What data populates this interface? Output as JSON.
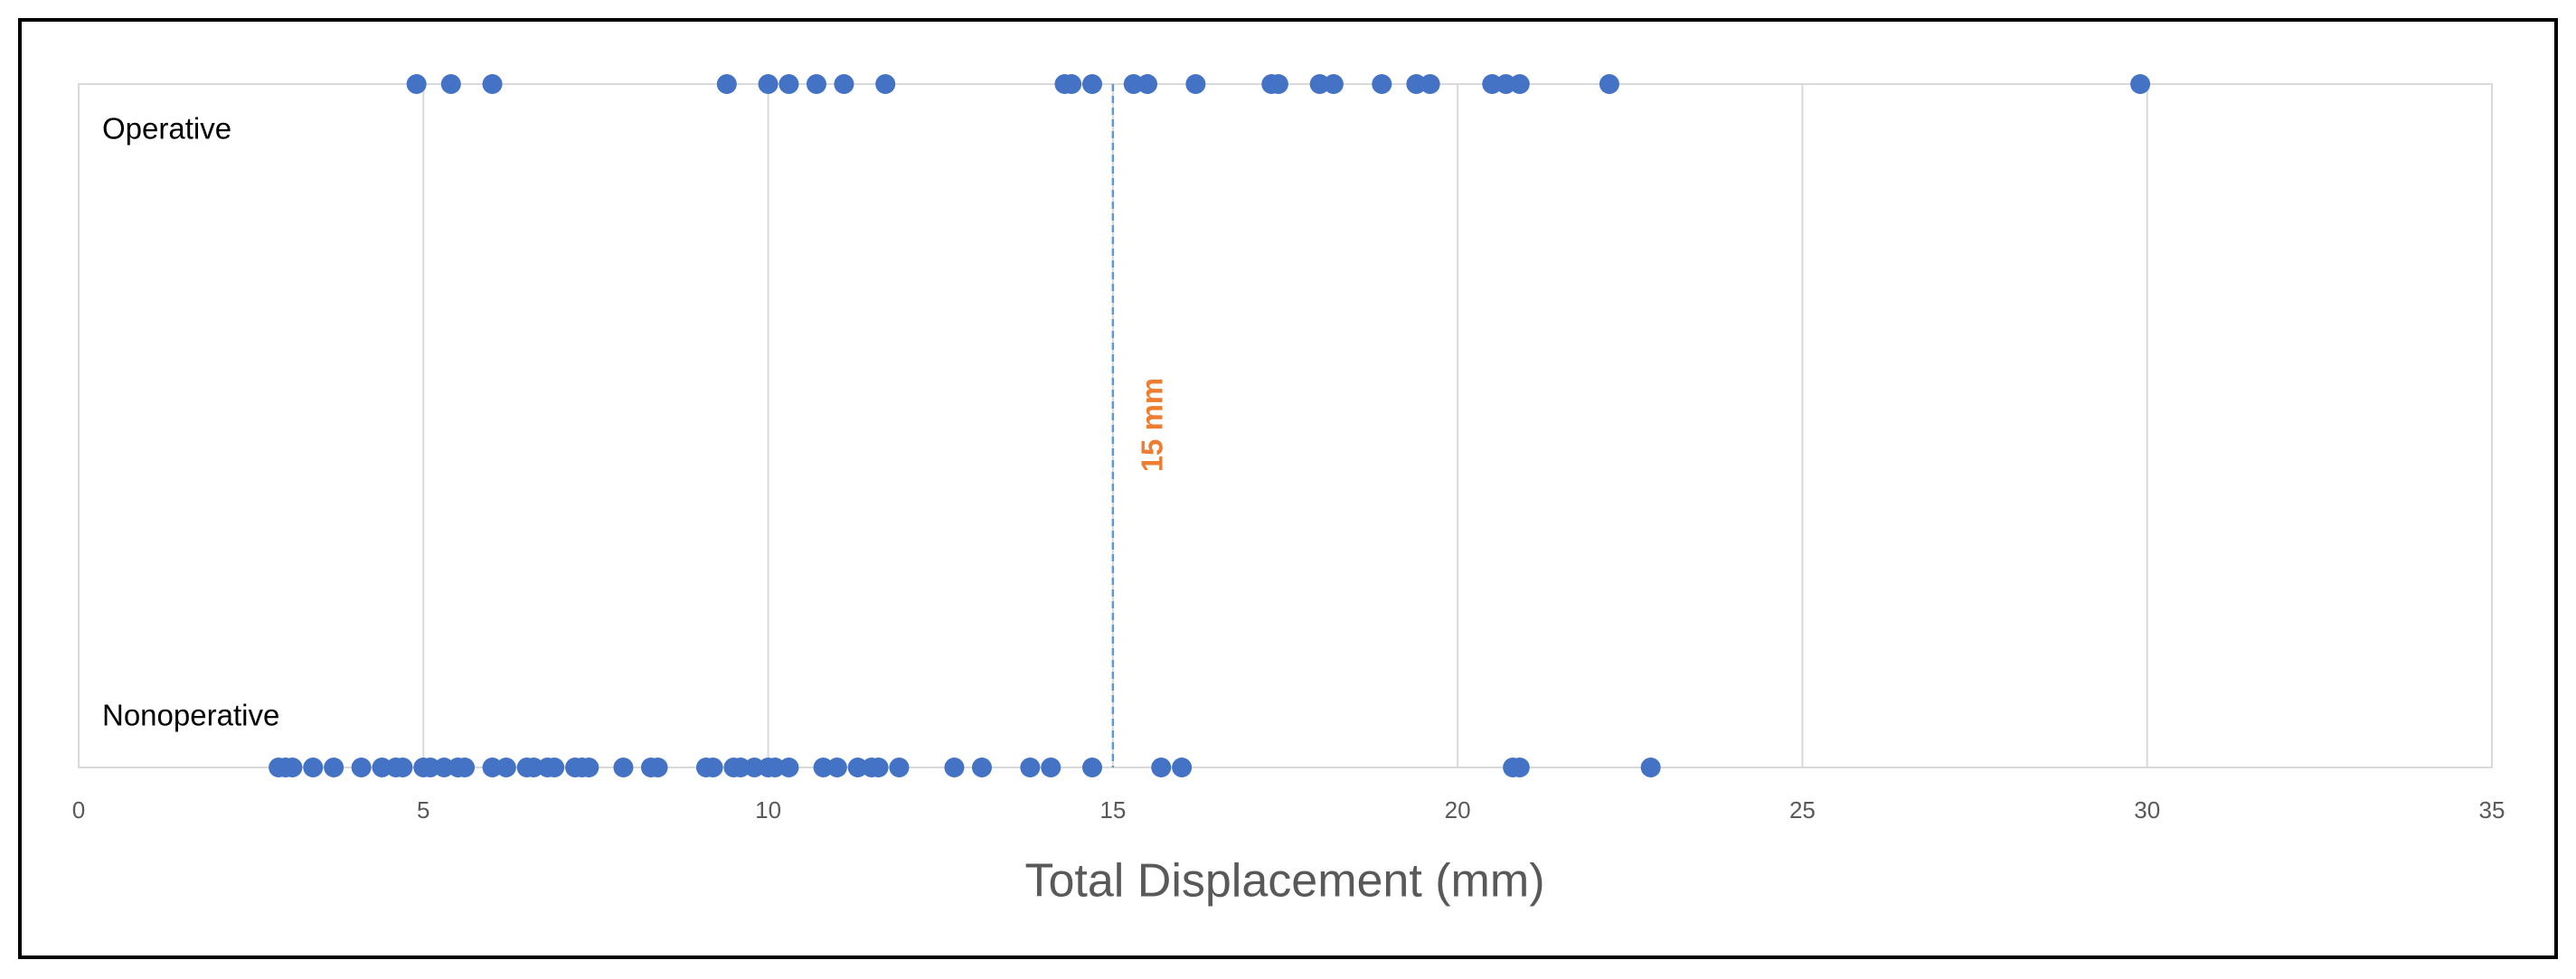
{
  "chart_data": {
    "type": "strip",
    "x_label": "Total Displacement (mm)",
    "xlim": [
      0,
      35
    ],
    "xticks": [
      0,
      5,
      10,
      15,
      20,
      25,
      30,
      35
    ],
    "grid": true,
    "series": [
      {
        "name": "Operative",
        "color": "#4472c4",
        "values": [
          4.9,
          5.4,
          6.0,
          9.4,
          10.0,
          10.3,
          10.7,
          11.1,
          11.7,
          14.3,
          14.4,
          14.7,
          15.3,
          15.5,
          16.2,
          17.3,
          17.4,
          18.0,
          18.2,
          18.9,
          19.4,
          19.6,
          20.5,
          20.7,
          20.9,
          22.2,
          29.9
        ]
      },
      {
        "name": "Nonoperative",
        "color": "#4472c4",
        "values": [
          2.9,
          3.0,
          3.1,
          3.4,
          3.7,
          4.1,
          4.4,
          4.6,
          4.7,
          5.0,
          5.1,
          5.3,
          5.5,
          5.6,
          6.0,
          6.2,
          6.5,
          6.6,
          6.8,
          6.9,
          7.2,
          7.3,
          7.4,
          7.9,
          8.3,
          8.4,
          9.1,
          9.2,
          9.5,
          9.6,
          9.8,
          10.0,
          10.1,
          10.3,
          10.8,
          11.0,
          11.3,
          11.5,
          11.6,
          11.9,
          12.7,
          13.1,
          13.8,
          14.1,
          14.7,
          15.7,
          16.0,
          20.8,
          20.9,
          22.8
        ]
      }
    ],
    "annotations": [
      {
        "text": "15 mm",
        "x": 15,
        "color": "#ed7d31",
        "line_color": "#5b9bd5"
      }
    ]
  }
}
